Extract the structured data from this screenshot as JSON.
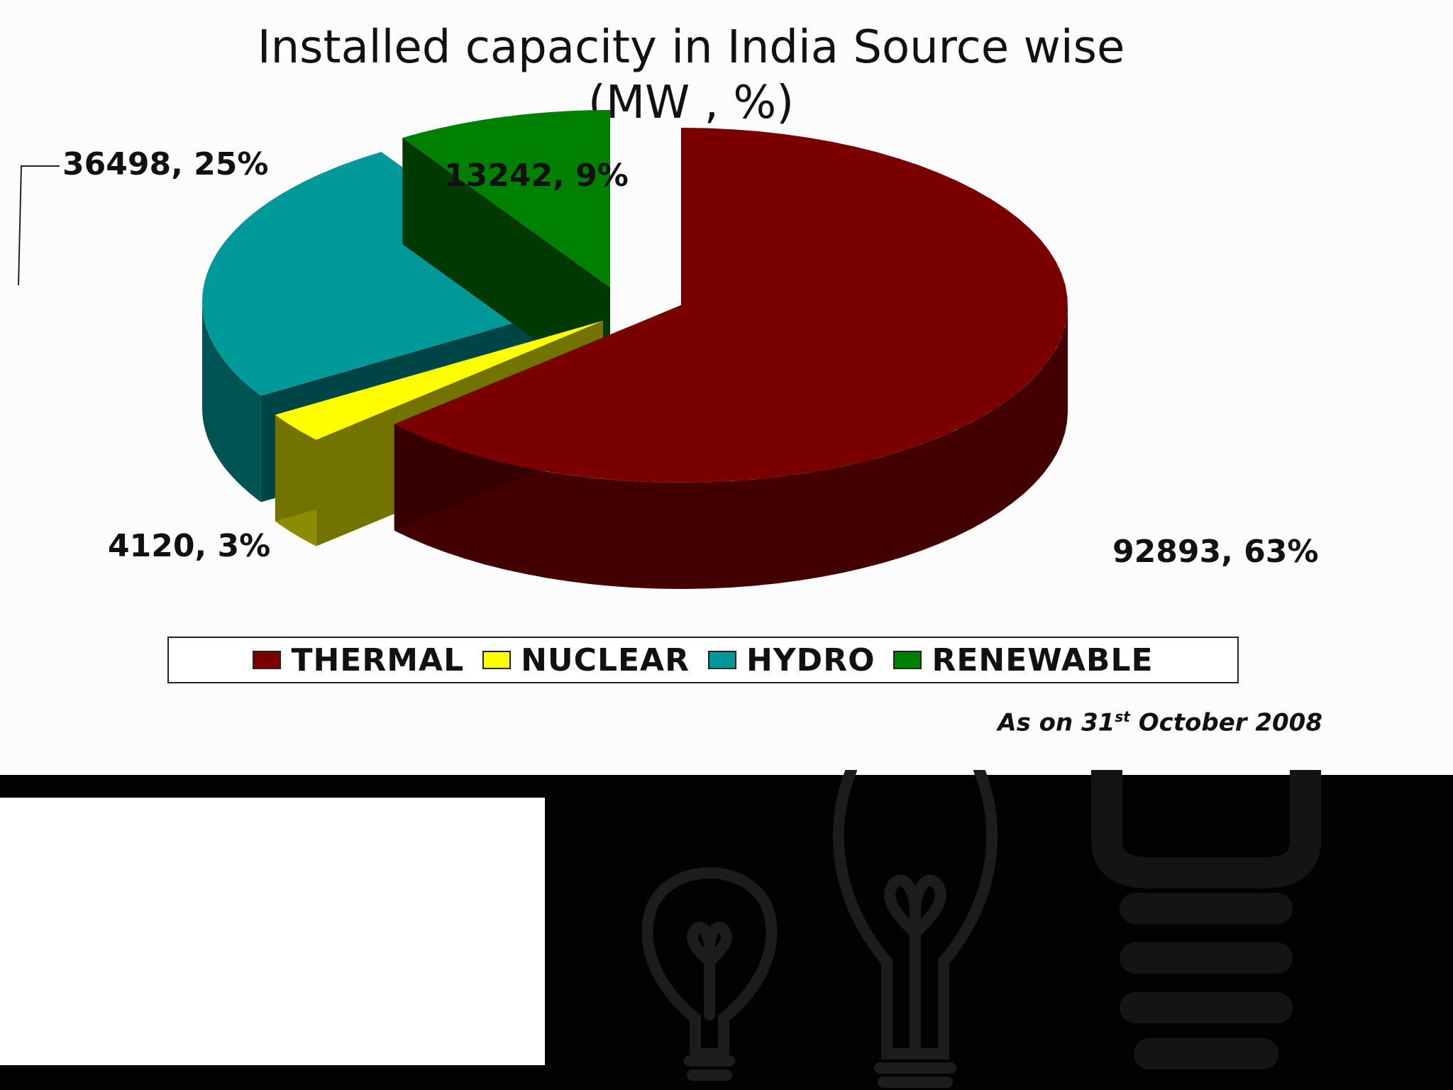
{
  "chart_data": {
    "type": "pie",
    "title_line1": "Installed capacity in India Source wise",
    "title_line2": "(MW , %)",
    "categories": [
      "THERMAL",
      "NUCLEAR",
      "HYDRO",
      "RENEWABLE"
    ],
    "values": [
      92893,
      4120,
      36498,
      13242
    ],
    "percents": [
      63,
      3,
      25,
      9
    ],
    "labels": [
      "92893, 63%",
      "4120, 3%",
      "36498, 25%",
      "13242, 9%"
    ],
    "colors": [
      "#7a0000",
      "#ffff00",
      "#009999",
      "#008000"
    ],
    "style": "3d-exploded",
    "legend_position": "bottom"
  },
  "note": {
    "prefix": "As on 31",
    "sup": "st",
    "suffix": " October 2008"
  },
  "decoration": {
    "bulb_art": [
      "lightbulb-icon",
      "lightbulb-icon",
      "led-lamp-icon"
    ]
  }
}
